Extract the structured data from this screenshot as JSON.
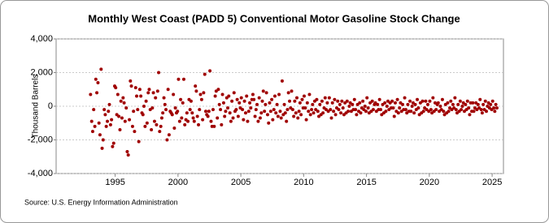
{
  "chart_data": {
    "type": "scatter",
    "title": "Monthly West Coast (PADD 5) Conventional Motor Gasoline Stock Change",
    "y_label": "Thousand Barrels",
    "source": "Source: U.S. Energy Information Administration",
    "color": "#a00000",
    "grid": true,
    "xlim": [
      1990.3,
      2025.9
    ],
    "xticks": [
      1995,
      2000,
      2005,
      2010,
      2015,
      2020,
      2025
    ],
    "ylim": [
      -4000,
      4000
    ],
    "yticks": [
      {
        "value": -4000,
        "label": "-4,000"
      },
      {
        "value": -2000,
        "label": "-2,000"
      },
      0,
      {
        "value": 2000,
        "label": "2,000"
      },
      {
        "value": 4000,
        "label": "4,000"
      }
    ],
    "x": [
      1993.04,
      1993.13,
      1993.21,
      1993.29,
      1993.38,
      1993.46,
      1993.54,
      1993.63,
      1993.71,
      1993.79,
      1993.88,
      1993.96,
      1994.04,
      1994.13,
      1994.21,
      1994.29,
      1994.38,
      1994.46,
      1994.54,
      1994.63,
      1994.71,
      1994.79,
      1994.88,
      1994.96,
      1995.04,
      1995.13,
      1995.21,
      1995.29,
      1995.38,
      1995.46,
      1995.54,
      1995.63,
      1995.71,
      1995.79,
      1995.88,
      1995.96,
      1996.04,
      1996.13,
      1996.21,
      1996.29,
      1996.38,
      1996.46,
      1996.54,
      1996.63,
      1996.71,
      1996.79,
      1996.88,
      1996.96,
      1997.04,
      1997.13,
      1997.21,
      1997.29,
      1997.38,
      1997.46,
      1997.54,
      1997.63,
      1997.71,
      1997.79,
      1997.88,
      1997.96,
      1998.04,
      1998.13,
      1998.21,
      1998.29,
      1998.38,
      1998.46,
      1998.54,
      1998.63,
      1998.71,
      1998.79,
      1998.88,
      1998.96,
      1999.04,
      1999.13,
      1999.21,
      1999.29,
      1999.38,
      1999.46,
      1999.54,
      1999.63,
      1999.71,
      1999.79,
      1999.88,
      1999.96,
      2000.04,
      2000.13,
      2000.21,
      2000.29,
      2000.38,
      2000.46,
      2000.54,
      2000.63,
      2000.71,
      2000.79,
      2000.88,
      2000.96,
      2001.04,
      2001.13,
      2001.21,
      2001.29,
      2001.38,
      2001.46,
      2001.54,
      2001.63,
      2001.71,
      2001.79,
      2001.88,
      2001.96,
      2002.04,
      2002.13,
      2002.21,
      2002.29,
      2002.38,
      2002.46,
      2002.54,
      2002.63,
      2002.71,
      2002.79,
      2002.88,
      2002.96,
      2003.04,
      2003.13,
      2003.21,
      2003.29,
      2003.38,
      2003.46,
      2003.54,
      2003.63,
      2003.71,
      2003.79,
      2003.88,
      2003.96,
      2004.04,
      2004.13,
      2004.21,
      2004.29,
      2004.38,
      2004.46,
      2004.54,
      2004.63,
      2004.71,
      2004.79,
      2004.88,
      2004.96,
      2005.04,
      2005.13,
      2005.21,
      2005.29,
      2005.38,
      2005.46,
      2005.54,
      2005.63,
      2005.71,
      2005.79,
      2005.88,
      2005.96,
      2006.04,
      2006.13,
      2006.21,
      2006.29,
      2006.38,
      2006.46,
      2006.54,
      2006.63,
      2006.71,
      2006.79,
      2006.88,
      2006.96,
      2007.04,
      2007.13,
      2007.21,
      2007.29,
      2007.38,
      2007.46,
      2007.54,
      2007.63,
      2007.71,
      2007.79,
      2007.88,
      2007.96,
      2008.04,
      2008.13,
      2008.21,
      2008.29,
      2008.38,
      2008.46,
      2008.54,
      2008.63,
      2008.71,
      2008.79,
      2008.88,
      2008.96,
      2009.04,
      2009.13,
      2009.21,
      2009.29,
      2009.38,
      2009.46,
      2009.54,
      2009.63,
      2009.71,
      2009.79,
      2009.88,
      2009.96,
      2010.04,
      2010.13,
      2010.21,
      2010.29,
      2010.38,
      2010.46,
      2010.54,
      2010.63,
      2010.71,
      2010.79,
      2010.88,
      2010.96,
      2011.04,
      2011.13,
      2011.21,
      2011.29,
      2011.38,
      2011.46,
      2011.54,
      2011.63,
      2011.71,
      2011.79,
      2011.88,
      2011.96,
      2012.04,
      2012.13,
      2012.21,
      2012.29,
      2012.38,
      2012.46,
      2012.54,
      2012.63,
      2012.71,
      2012.79,
      2012.88,
      2012.96,
      2013.04,
      2013.13,
      2013.21,
      2013.29,
      2013.38,
      2013.46,
      2013.54,
      2013.63,
      2013.71,
      2013.79,
      2013.88,
      2013.96,
      2014.04,
      2014.13,
      2014.21,
      2014.29,
      2014.38,
      2014.46,
      2014.54,
      2014.63,
      2014.71,
      2014.79,
      2014.88,
      2014.96,
      2015.04,
      2015.13,
      2015.21,
      2015.29,
      2015.38,
      2015.46,
      2015.54,
      2015.63,
      2015.71,
      2015.79,
      2015.88,
      2015.96,
      2016.04,
      2016.13,
      2016.21,
      2016.29,
      2016.38,
      2016.46,
      2016.54,
      2016.63,
      2016.71,
      2016.79,
      2016.88,
      2016.96,
      2017.04,
      2017.13,
      2017.21,
      2017.29,
      2017.38,
      2017.46,
      2017.54,
      2017.63,
      2017.71,
      2017.79,
      2017.88,
      2017.96,
      2018.04,
      2018.13,
      2018.21,
      2018.29,
      2018.38,
      2018.46,
      2018.54,
      2018.63,
      2018.71,
      2018.79,
      2018.88,
      2018.96,
      2019.04,
      2019.13,
      2019.21,
      2019.29,
      2019.38,
      2019.46,
      2019.54,
      2019.63,
      2019.71,
      2019.79,
      2019.88,
      2019.96,
      2020.04,
      2020.13,
      2020.21,
      2020.29,
      2020.38,
      2020.46,
      2020.54,
      2020.63,
      2020.71,
      2020.79,
      2020.88,
      2020.96,
      2021.04,
      2021.13,
      2021.21,
      2021.29,
      2021.38,
      2021.46,
      2021.54,
      2021.63,
      2021.71,
      2021.79,
      2021.88,
      2021.96,
      2022.04,
      2022.13,
      2022.21,
      2022.29,
      2022.38,
      2022.46,
      2022.54,
      2022.63,
      2022.71,
      2022.79,
      2022.88,
      2022.96,
      2023.04,
      2023.13,
      2023.21,
      2023.29,
      2023.38,
      2023.46,
      2023.54,
      2023.63,
      2023.71,
      2023.79,
      2023.88,
      2023.96,
      2024.04,
      2024.13,
      2024.21,
      2024.29,
      2024.38,
      2024.46,
      2024.54,
      2024.63,
      2024.71,
      2024.79,
      2024.88,
      2024.96,
      2025.04,
      2025.13,
      2025.21,
      2025.29,
      2025.38
    ],
    "values": [
      700,
      -900,
      -1500,
      -200,
      -1200,
      1600,
      800,
      1400,
      -1000,
      -1700,
      2200,
      -2500,
      -2000,
      -200,
      -500,
      -1200,
      -900,
      -300,
      100,
      -1100,
      -800,
      -2400,
      -2200,
      1200,
      1100,
      -500,
      700,
      -600,
      -1400,
      300,
      -700,
      500,
      200,
      -900,
      -100,
      -2700,
      -2900,
      -800,
      1500,
      1200,
      -1200,
      -300,
      -1500,
      1100,
      600,
      -200,
      -2100,
      1000,
      600,
      -400,
      -500,
      0,
      -1200,
      300,
      -1000,
      800,
      1000,
      -200,
      -1400,
      -100,
      800,
      -900,
      500,
      -1100,
      900,
      2000,
      -1500,
      -1200,
      -700,
      -400,
      500,
      100,
      -200,
      -2000,
      1000,
      -1700,
      -300,
      -400,
      -500,
      700,
      -1300,
      -100,
      -400,
      -300,
      1600,
      -900,
      400,
      -700,
      200,
      1600,
      -1100,
      -800,
      -400,
      -900,
      400,
      -200,
      300,
      -400,
      -700,
      -900,
      1200,
      900,
      -600,
      -1100,
      -200,
      700,
      400,
      -800,
      800,
      1900,
      -300,
      -500,
      -600,
      -300,
      2100,
      -900,
      -1200,
      -200,
      -1200,
      600,
      900,
      -700,
      1000,
      100,
      -200,
      -1100,
      700,
      200,
      -600,
      -300,
      500,
      -100,
      600,
      -400,
      -900,
      300,
      -700,
      800,
      -300,
      -200,
      400,
      -600,
      200,
      -100,
      500,
      -200,
      -800,
      300,
      -400,
      600,
      -900,
      -300,
      200,
      -100,
      400,
      700,
      400,
      -600,
      -200,
      100,
      -900,
      500,
      -700,
      -400,
      300,
      900,
      -300,
      100,
      800,
      -500,
      -1000,
      200,
      -300,
      400,
      -800,
      -200,
      600,
      -400,
      100,
      -600,
      700,
      -300,
      -700,
      1500,
      -500,
      100,
      -400,
      -900,
      -200,
      800,
      300,
      -100,
      900,
      -200,
      -600,
      300,
      -400,
      500,
      -700,
      -300,
      200,
      -500,
      400,
      -100,
      600,
      -100,
      -800,
      200,
      -300,
      700,
      -500,
      -200,
      100,
      -400,
      300,
      -200,
      400,
      -300,
      -600,
      100,
      -500,
      300,
      -400,
      -100,
      500,
      -200,
      200,
      -300,
      500,
      -200,
      -700,
      200,
      -300,
      400,
      -500,
      -100,
      300,
      -200,
      100,
      -400,
      300,
      -100,
      -500,
      200,
      -400,
      300,
      -300,
      0,
      200,
      -300,
      100,
      -200,
      400,
      -200,
      -500,
      100,
      -300,
      200,
      -400,
      -100,
      300,
      -200,
      0,
      -300,
      500,
      -100,
      -400,
      200,
      -300,
      300,
      -200,
      100,
      200,
      -300,
      100,
      -200,
      400,
      -200,
      -500,
      100,
      -400,
      200,
      -300,
      0,
      300,
      -200,
      200,
      -100,
      300,
      -100,
      -600,
      200,
      -300,
      400,
      -400,
      -100,
      200,
      -300,
      100,
      -200,
      500,
      -200,
      -400,
      100,
      -300,
      300,
      -300,
      0,
      200,
      -400,
      100,
      -200,
      400,
      -100,
      -500,
      200,
      -400,
      300,
      -300,
      -100,
      300,
      -200,
      100,
      -300,
      300,
      -200,
      -400,
      500,
      -300,
      200,
      -200,
      100,
      200,
      -300,
      0,
      -200,
      400,
      -300,
      -500,
      100,
      -400,
      200,
      -300,
      -100,
      300,
      -200,
      100,
      -100,
      500,
      -200,
      -400,
      100,
      -300,
      300,
      -200,
      0,
      200,
      -300,
      100,
      -200,
      300,
      -100,
      -500,
      200,
      -300,
      200,
      -300,
      -100,
      200,
      -200,
      100,
      -100,
      400,
      -200,
      -400,
      100,
      -200,
      300,
      -300,
      0,
      200,
      -100,
      100,
      -200,
      300,
      -100,
      -300,
      100,
      -100
    ]
  }
}
